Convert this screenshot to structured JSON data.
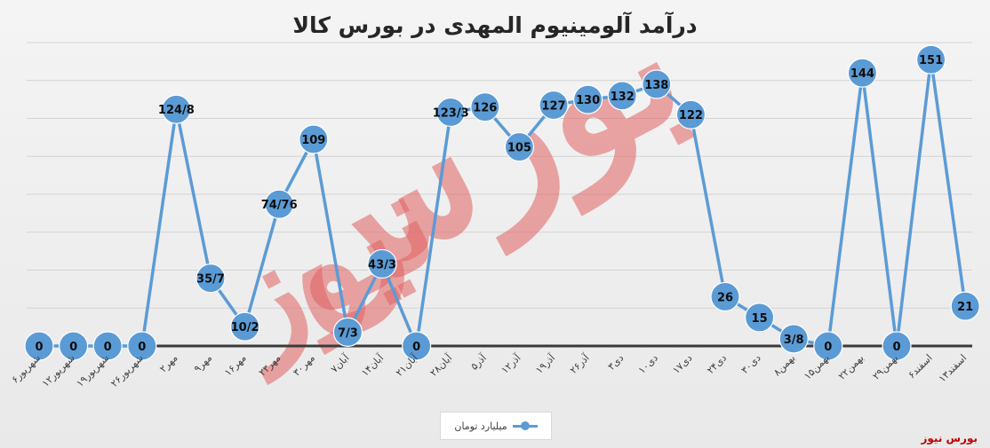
{
  "chart_data": {
    "type": "line",
    "title": "درآمد آلومینیوم المهدی در بورس کالا",
    "categories": [
      "۶شهریور",
      "۱۲شهریور",
      "۱۹شهریور",
      "۲۶شهریور",
      "۲مهر",
      "۹مهر",
      "۱۶مهر",
      "۲۳مهر",
      "۳۰مهر",
      "۷آبان",
      "۱۴آبان",
      "۲۱آبان",
      "۲۸آبان",
      "۵آذر",
      "۱۲آذر",
      "۱۹آذر",
      "۲۶آذر",
      "۳دی",
      "۱۰دی",
      "۱۷دی",
      "۲۴دی",
      "۳۰دی",
      "۸بهمن",
      "۱۵بهمن",
      "۲۲بهمن",
      "۲۹بهمن",
      "۶اسفند",
      "۱۳اسفند"
    ],
    "series": [
      {
        "name": "میلیارد تومان",
        "values": [
          0,
          0,
          0,
          0,
          124.8,
          35.7,
          10.2,
          74.76,
          109,
          7.3,
          43.3,
          0,
          123.3,
          126,
          105,
          127,
          130,
          132,
          138,
          122,
          26,
          15,
          3.8,
          0,
          144,
          0,
          151,
          21
        ],
        "labels": [
          "0",
          "0",
          "0",
          "0",
          "124/8",
          "35/7",
          "10/2",
          "74/76",
          "109",
          "7/3",
          "43/3",
          "0",
          "123/3",
          "126",
          "105",
          "127",
          "130",
          "132",
          "138",
          "122",
          "26",
          "15",
          "3/8",
          "0",
          "144",
          "0",
          "151",
          "21"
        ]
      }
    ],
    "ylim": [
      0,
      160
    ],
    "grid": true,
    "legend_position": "bottom",
    "colors": {
      "series": "#5b9bd5",
      "axis": "#3a3a3a",
      "grid": "#d3d3d3",
      "watermark": "#e26262"
    }
  },
  "watermark": {
    "word1": "بورس",
    "word2": "نیوز"
  },
  "logo": "بورس نیوز"
}
